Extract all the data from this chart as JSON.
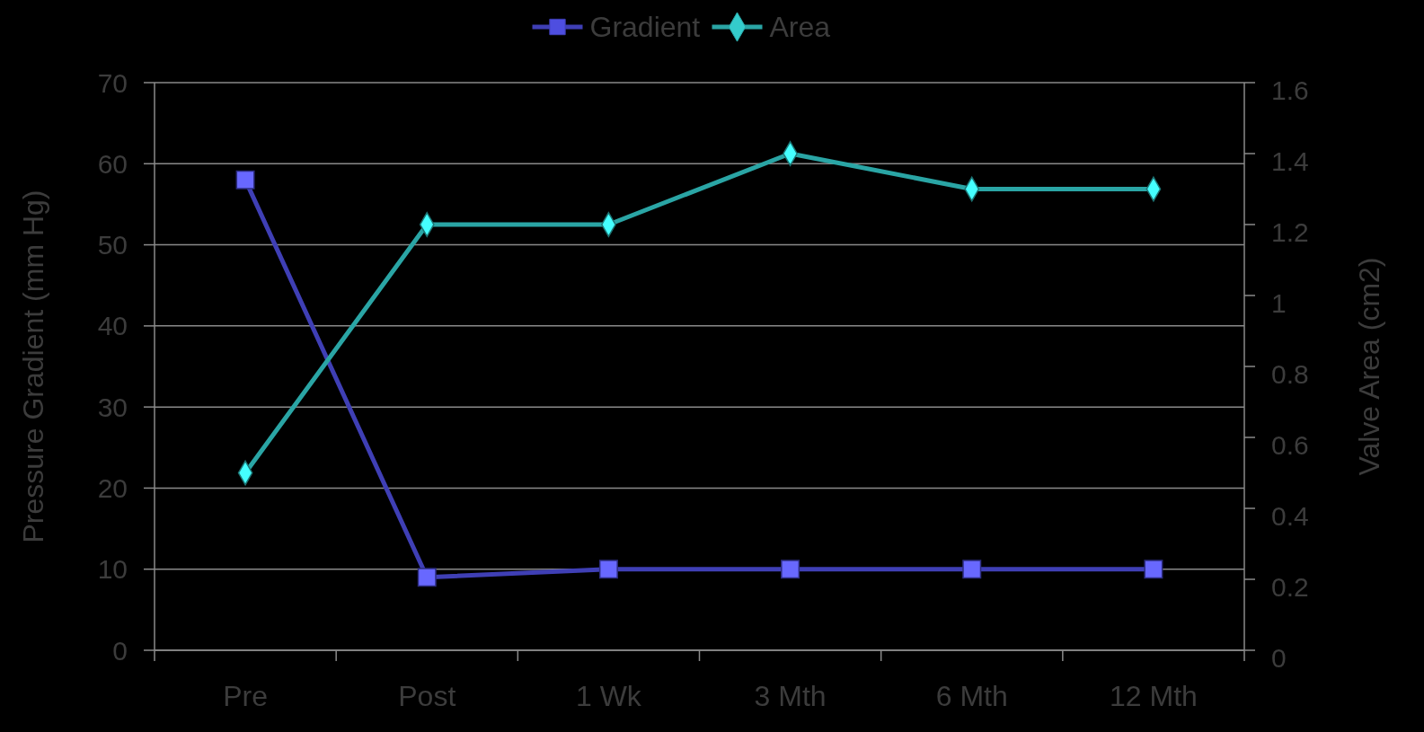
{
  "chart_data": {
    "type": "line",
    "categories": [
      "Pre",
      "Post",
      "1 Wk",
      "3 Mth",
      "6 Mth",
      "12 Mth"
    ],
    "series": [
      {
        "name": "Gradient",
        "color": "#3f3fb5",
        "values": [
          58,
          9,
          10,
          10,
          10,
          10
        ],
        "marker": "square"
      },
      {
        "name": "Area",
        "color": "#2aa5a5",
        "values": [
          0.5,
          1.2,
          1.2,
          1.4,
          1.3,
          1.3
        ],
        "axis": "y2",
        "marker": "diamond"
      }
    ],
    "ylabel": "Pressure Gradient (mm Hg)",
    "y2label": "Valve Area (cm2)",
    "ylim": [
      0,
      70
    ],
    "yticks": [
      0,
      10,
      20,
      30,
      40,
      50,
      60,
      70
    ],
    "y2lim": [
      0,
      1.6
    ],
    "y2ticks": [
      0,
      0.2,
      0.4,
      0.6,
      0.8,
      1,
      1.2,
      1.4,
      1.6
    ],
    "grid": "y",
    "legend": "top"
  }
}
